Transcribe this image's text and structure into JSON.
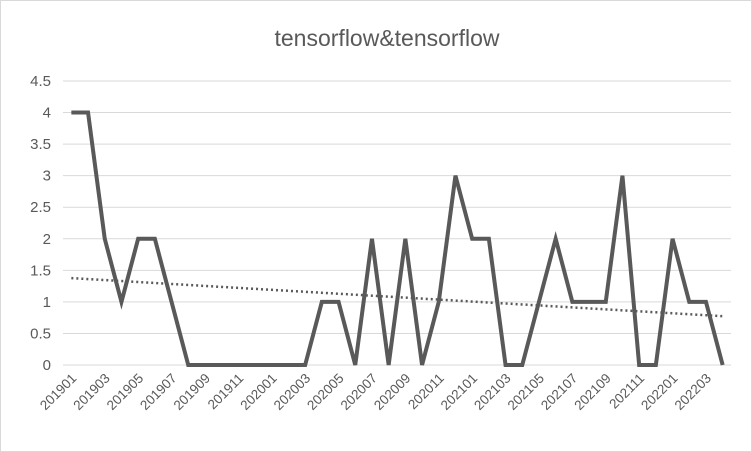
{
  "chart_data": {
    "type": "line",
    "title": "tensorflow&tensorflow",
    "xlabel": "",
    "ylabel": "",
    "ylim": [
      0,
      4.5
    ],
    "ytick_step": 0.5,
    "y_ticks": [
      "0",
      "0.5",
      "1",
      "1.5",
      "2",
      "2.5",
      "3",
      "3.5",
      "4",
      "4.5"
    ],
    "grid": true,
    "legend": "none",
    "x": [
      "201901",
      "201902",
      "201903",
      "201904",
      "201905",
      "201906",
      "201907",
      "201908",
      "201909",
      "201910",
      "201911",
      "201912",
      "202001",
      "202002",
      "202003",
      "202004",
      "202005",
      "202006",
      "202007",
      "202008",
      "202009",
      "202010",
      "202011",
      "202012",
      "202101",
      "202102",
      "202103",
      "202104",
      "202105",
      "202106",
      "202107",
      "202108",
      "202109",
      "202110",
      "202111",
      "202112",
      "202201",
      "202202",
      "202203",
      "202204"
    ],
    "x_tick_labels": [
      "201901",
      "201903",
      "201905",
      "201907",
      "201909",
      "201911",
      "202001",
      "202003",
      "202005",
      "202007",
      "202009",
      "202011",
      "202101",
      "202103",
      "202105",
      "202107",
      "202109",
      "202111",
      "202201",
      "202203"
    ],
    "series": [
      {
        "name": "",
        "color": "#595959",
        "values": [
          4,
          4,
          2,
          1,
          2,
          2,
          1,
          0,
          0,
          0,
          0,
          0,
          0,
          0,
          0,
          1,
          1,
          0,
          2,
          0,
          2,
          0,
          1,
          3,
          2,
          2,
          0,
          0,
          1,
          2,
          1,
          1,
          1,
          3,
          0,
          0,
          2,
          1,
          1,
          0
        ]
      }
    ],
    "trendline": {
      "type": "linear",
      "style": "dotted",
      "color": "#595959"
    }
  }
}
